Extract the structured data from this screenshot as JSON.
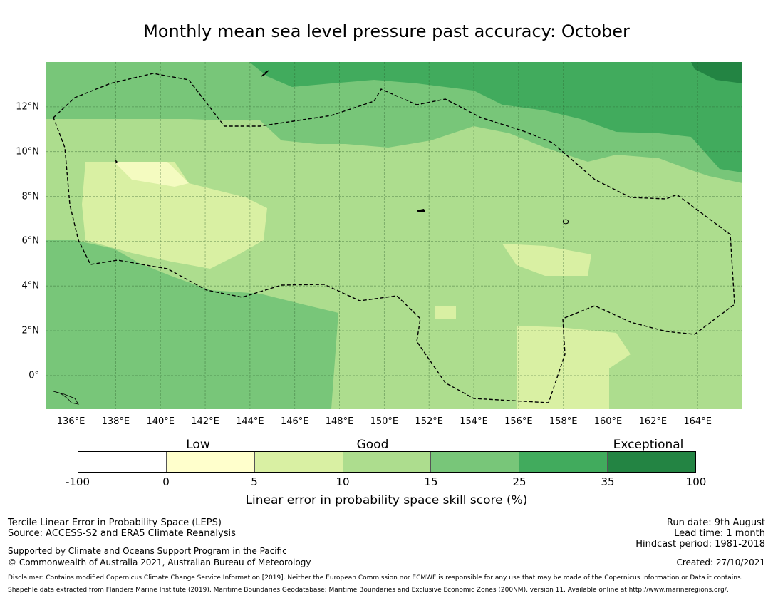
{
  "title": "Monthly mean sea level pressure past accuracy: October",
  "map": {
    "x_ticks": [
      "136°E",
      "138°E",
      "140°E",
      "142°E",
      "144°E",
      "146°E",
      "148°E",
      "150°E",
      "152°E",
      "154°E",
      "156°E",
      "158°E",
      "160°E",
      "162°E",
      "164°E"
    ],
    "y_ticks": [
      "12°N",
      "10°N",
      "8°N",
      "6°N",
      "4°N",
      "2°N",
      "0°"
    ],
    "lon_range": [
      134.9,
      166.0
    ],
    "lat_range": [
      -1.5,
      14.0
    ],
    "palette": [
      "#ffffff",
      "#ffffcc",
      "#d9f0a3",
      "#addd8e",
      "#78c679",
      "#41ab5d",
      "#238443"
    ]
  },
  "legend": {
    "categories": [
      "Low",
      "Good",
      "Exceptional"
    ],
    "ticks": [
      "-100",
      "0",
      "5",
      "10",
      "15",
      "25",
      "35",
      "100"
    ],
    "colors": [
      "#ffffff",
      "#ffffcc",
      "#d9f0a3",
      "#addd8e",
      "#78c679",
      "#41ab5d",
      "#238443"
    ],
    "label": "Linear error in probability space skill score (%)"
  },
  "footer": {
    "method": "Tercile Linear Error in Probability Space (LEPS)",
    "source": "Source: ACCESS-S2 and ERA5 Climate Reanalysis",
    "support": "Supported by Climate and Oceans Support Program in the Pacific",
    "copyright": "© Commonwealth of Australia 2021, Australian Bureau of Meteorology",
    "run_date": "Run date: 9th August",
    "lead_time": "Lead time: 1 month",
    "hindcast": "Hindcast period: 1981-2018",
    "created": "Created: 27/10/2021",
    "disclaimer": "Disclaimer: Contains modified Copernicus Climate Change Service Information [2019]. Neither the European Commission nor ECMWF is responsible for any use that may be made of the Copernicus Information or Data it contains.",
    "shapefile": "Shapefile data extracted from Flanders Marine Institute (2019), Maritime Boundaries Geodatabase: Maritime Boundaries and Exclusive Economic Zones (200NM), version 11. Available online at http://www.marineregions.org/."
  }
}
